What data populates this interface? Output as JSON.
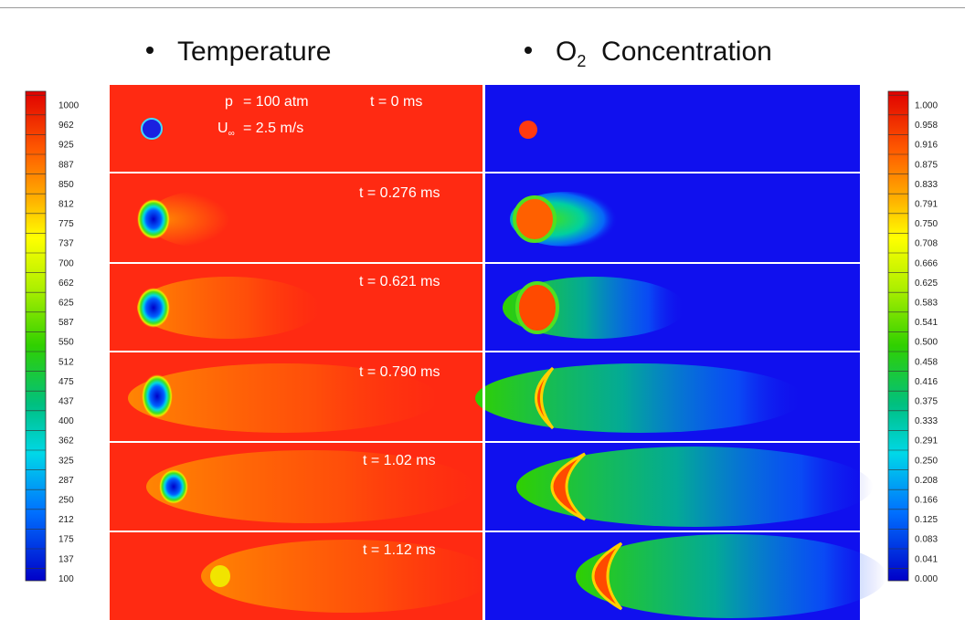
{
  "headings": {
    "temperature": "Temperature",
    "oxygen_prefix": "O",
    "oxygen_sub": "2",
    "oxygen_suffix": "Concentration"
  },
  "conditions": {
    "p_label": "p",
    "p_value": "=   100 atm",
    "u_label": "U",
    "u_sub": "∞",
    "u_value": "=  2.5 m/s"
  },
  "time_labels": [
    "t = 0 ms",
    "t = 0.276 ms",
    "t = 0.621 ms",
    "t = 0.790 ms",
    "t = 1.02 ms",
    "t = 1.12 ms"
  ],
  "temperature_scale": [
    "1000",
    "962",
    "925",
    "887",
    "850",
    "812",
    "775",
    "737",
    "700",
    "662",
    "625",
    "587",
    "550",
    "512",
    "475",
    "437",
    "400",
    "362",
    "325",
    "287",
    "250",
    "212",
    "175",
    "137",
    "100"
  ],
  "o2_scale": [
    "1.000",
    "0.958",
    "0.916",
    "0.875",
    "0.833",
    "0.791",
    "0.750",
    "0.708",
    "0.666",
    "0.625",
    "0.583",
    "0.541",
    "0.500",
    "0.458",
    "0.416",
    "0.375",
    "0.333",
    "0.291",
    "0.250",
    "0.208",
    "0.166",
    "0.125",
    "0.083",
    "0.041",
    "0.000"
  ],
  "colors": {
    "hot": "#ff2a12",
    "cold": "#1010ee",
    "separator": "#ffffff"
  }
}
